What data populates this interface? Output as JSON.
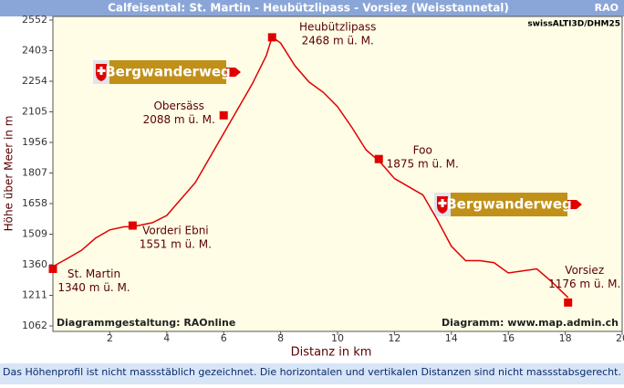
{
  "chart_data": {
    "type": "line",
    "title": "Calfeisental: St. Martin - Heubützlipass -  Vorsiez (Weisstannetal)",
    "corner_label": "RAO",
    "source_top": "swissALTI3D/DHM25",
    "credit_left": "Diagrammgestaltung: RAOnline",
    "credit_right": "Diagramm: www.map.admin.ch",
    "footnote": "Das Höhenprofil ist nicht massstäblich gezeichnet. Die horizontalen und vertikalen Distanzen sind nicht massstabsgerecht.",
    "x_label": "Distanz in km",
    "y_label": "Höhe über Meer in m",
    "signs": [
      "Bergwanderweg",
      "Bergwanderweg"
    ],
    "xlim": [
      0,
      20
    ],
    "xticks": [
      2,
      4,
      6,
      8,
      10,
      12,
      14,
      16,
      18,
      20
    ],
    "ylim": [
      1062,
      2552
    ],
    "yticks": [
      1062,
      1211,
      1360,
      1509,
      1658,
      1807,
      1956,
      2105,
      2254,
      2403,
      2552
    ],
    "series": [
      {
        "color": "#e00000",
        "x": [
          0,
          0.5,
          1,
          1.5,
          2,
          2.5,
          2.8,
          3.5,
          4,
          4.5,
          5,
          5.5,
          6,
          6.5,
          7,
          7.5,
          7.7,
          8,
          8.5,
          9,
          9.5,
          10,
          10.5,
          11,
          11.5,
          12,
          12.5,
          13,
          13.5,
          14,
          14.5,
          15,
          15.5,
          16,
          16.5,
          17,
          17.5,
          18.1
        ],
        "values": [
          1351,
          1390,
          1430,
          1490,
          1530,
          1545,
          1545,
          1565,
          1600,
          1680,
          1760,
          1880,
          2000,
          2120,
          2240,
          2380,
          2470,
          2440,
          2330,
          2250,
          2200,
          2130,
          2030,
          1920,
          1860,
          1780,
          1740,
          1700,
          1580,
          1450,
          1380,
          1380,
          1370,
          1320,
          1330,
          1340,
          1280,
          1200
        ]
      }
    ],
    "waypoints": {
      "color": "#e00000",
      "names": [
        "St. Martin",
        "Vorderi Ebni",
        "Obersäss",
        "Heubützlipass",
        "Foo",
        "Vorsiez"
      ],
      "x": [
        0,
        2.8,
        6,
        7.7,
        11.45,
        18.1
      ],
      "values": [
        1340,
        1551,
        2088,
        2468,
        1875,
        1176
      ],
      "value_labels": [
        "1340 m ü. M.",
        "1551 m ü. M.",
        "2088 m ü. M.",
        "2468 m ü. M.",
        "1875 m ü. M.",
        "1176 m ü. M."
      ]
    }
  }
}
